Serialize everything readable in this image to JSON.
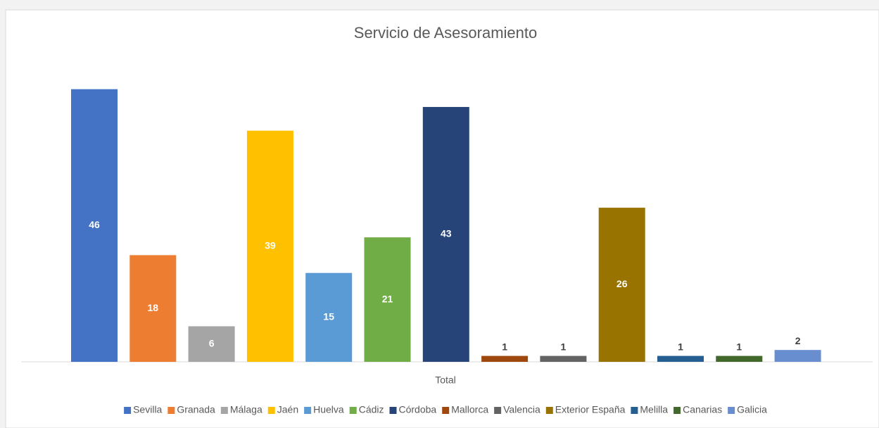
{
  "chart_data": {
    "type": "bar",
    "title": "Servicio de Asesoramiento",
    "categories": [
      "Total"
    ],
    "ylim": [
      0,
      50
    ],
    "series": [
      {
        "name": "Sevilla",
        "color": "#4472c4",
        "values": [
          46
        ]
      },
      {
        "name": "Granada",
        "color": "#ed7d31",
        "values": [
          18
        ]
      },
      {
        "name": "Málaga",
        "color": "#a5a5a5",
        "values": [
          6
        ]
      },
      {
        "name": "Jaén",
        "color": "#ffc000",
        "values": [
          39
        ]
      },
      {
        "name": "Huelva",
        "color": "#5b9bd5",
        "values": [
          15
        ]
      },
      {
        "name": "Cádiz",
        "color": "#70ad47",
        "values": [
          21
        ]
      },
      {
        "name": "Córdoba",
        "color": "#264478",
        "values": [
          43
        ]
      },
      {
        "name": "Mallorca",
        "color": "#9e480e",
        "values": [
          1
        ]
      },
      {
        "name": "Valencia",
        "color": "#636363",
        "values": [
          1
        ]
      },
      {
        "name": "Exterior España",
        "color": "#997300",
        "values": [
          26
        ]
      },
      {
        "name": "Melilla",
        "color": "#255e91",
        "values": [
          1
        ]
      },
      {
        "name": "Canarias",
        "color": "#43682b",
        "values": [
          1
        ]
      },
      {
        "name": "Galicia",
        "color": "#698ed0",
        "values": [
          2
        ]
      }
    ],
    "legend": "bottom"
  }
}
